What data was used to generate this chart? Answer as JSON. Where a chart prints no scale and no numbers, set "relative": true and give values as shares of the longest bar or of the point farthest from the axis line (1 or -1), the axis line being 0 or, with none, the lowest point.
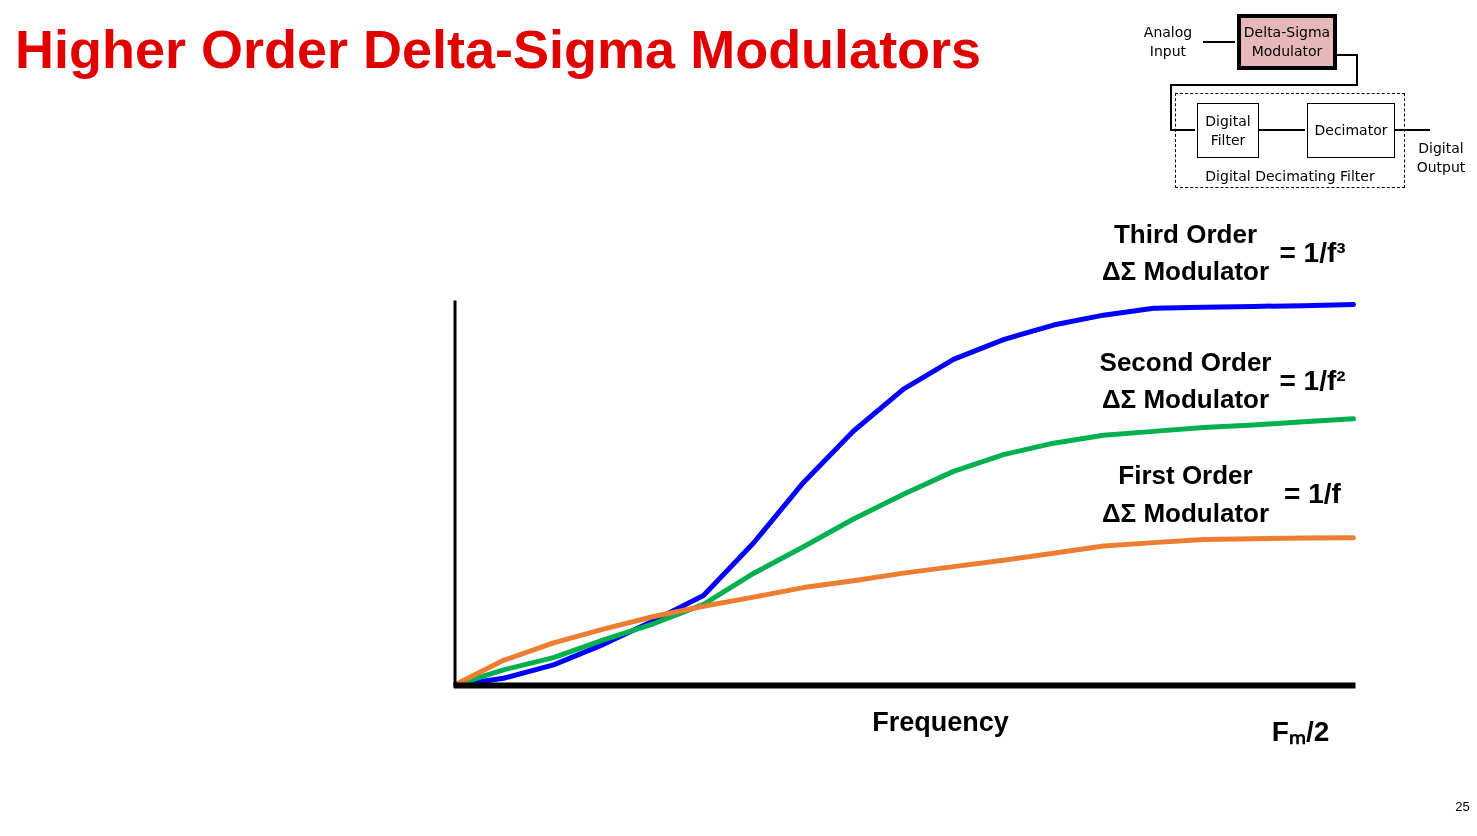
{
  "chart_data": {
    "type": "line",
    "relative": true,
    "title": "Higher Order Delta-Sigma Modulators",
    "xlabel": "Frequency",
    "categories": [
      null,
      null,
      null,
      null,
      null,
      null,
      null,
      null,
      null,
      null,
      null,
      null,
      null,
      null,
      null,
      null,
      null,
      null,
      null
    ],
    "series": [
      {
        "name": "Third Order\nΔΣ Modulator",
        "color": "#0000ff",
        "values": [
          0,
          0.019,
          0.054,
          0.108,
          0.17,
          0.236,
          0.374,
          0.533,
          0.668,
          0.778,
          0.856,
          0.908,
          0.946,
          0.972,
          0.99,
          0.993,
          0.995,
          0.997,
          1.0
        ]
      },
      {
        "name": "Second Order\nΔΣ Modulator",
        "color": "#00b050",
        "values": [
          0,
          0.041,
          0.073,
          0.12,
          0.162,
          0.213,
          0.294,
          0.364,
          0.437,
          0.502,
          0.562,
          0.606,
          0.636,
          0.657,
          0.667,
          0.677,
          0.684,
          0.692,
          0.7
        ]
      },
      {
        "name": "First Order\nΔΣ Modulator",
        "color": "#ed7d31",
        "values": [
          0,
          0.066,
          0.112,
          0.148,
          0.181,
          0.208,
          0.232,
          0.257,
          0.275,
          0.295,
          0.312,
          0.329,
          0.347,
          0.366,
          0.375,
          0.383,
          0.385,
          0.387,
          0.388
        ]
      }
    ],
    "annotations": [
      "= 1/f³",
      "= 1/f²",
      "= 1/f",
      "Analog\nInput",
      "Delta-Sigma\nModulator",
      "Digital\nFilter",
      "Decimator",
      "Digital Decimating Filter",
      "Digital\nOutput",
      "Fₘ/2",
      "25"
    ]
  }
}
